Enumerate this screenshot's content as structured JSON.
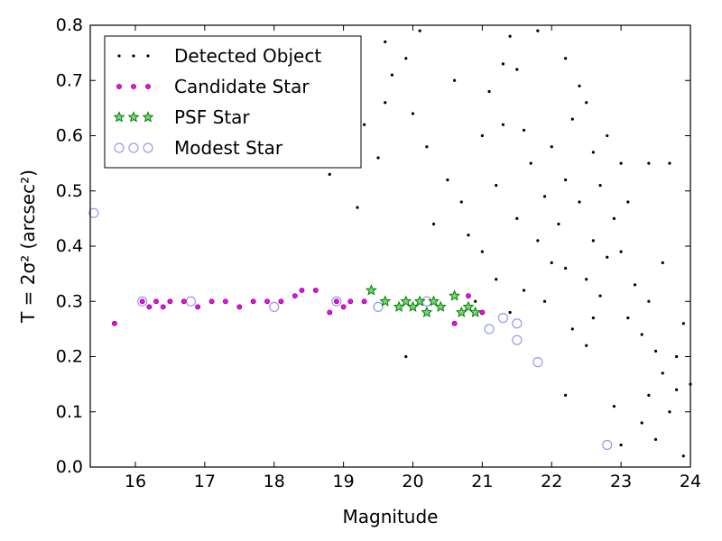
{
  "chart_data": {
    "type": "scatter",
    "xlabel": "Magnitude",
    "ylabel": "T = 2σ² (arcsec²)",
    "xlim": [
      15.35,
      24.0
    ],
    "ylim": [
      0.0,
      0.8
    ],
    "xticks": [
      "16",
      "17",
      "18",
      "19",
      "20",
      "21",
      "22",
      "23",
      "24"
    ],
    "yticks": [
      "0.0",
      "0.1",
      "0.2",
      "0.3",
      "0.4",
      "0.5",
      "0.6",
      "0.7",
      "0.8"
    ],
    "legend_position": "top-left",
    "grid": false,
    "series": [
      {
        "name": "Detected Object",
        "marker": "dot",
        "color": "#000000",
        "points": [
          [
            18.8,
            0.53
          ],
          [
            19.2,
            0.47
          ],
          [
            19.5,
            0.56
          ],
          [
            19.3,
            0.62
          ],
          [
            19.6,
            0.66
          ],
          [
            19.7,
            0.71
          ],
          [
            19.9,
            0.74
          ],
          [
            19.6,
            0.77
          ],
          [
            20.0,
            0.64
          ],
          [
            20.2,
            0.58
          ],
          [
            20.5,
            0.52
          ],
          [
            20.3,
            0.44
          ],
          [
            20.8,
            0.42
          ],
          [
            20.7,
            0.48
          ],
          [
            21.0,
            0.39
          ],
          [
            21.2,
            0.51
          ],
          [
            21.3,
            0.62
          ],
          [
            21.1,
            0.68
          ],
          [
            21.5,
            0.72
          ],
          [
            21.4,
            0.78
          ],
          [
            21.8,
            0.79
          ],
          [
            21.6,
            0.61
          ],
          [
            21.7,
            0.55
          ],
          [
            21.9,
            0.49
          ],
          [
            21.5,
            0.45
          ],
          [
            21.8,
            0.41
          ],
          [
            22.0,
            0.37
          ],
          [
            22.1,
            0.44
          ],
          [
            22.2,
            0.52
          ],
          [
            22.0,
            0.58
          ],
          [
            22.3,
            0.63
          ],
          [
            22.4,
            0.69
          ],
          [
            22.2,
            0.74
          ],
          [
            22.5,
            0.66
          ],
          [
            22.6,
            0.57
          ],
          [
            22.4,
            0.48
          ],
          [
            22.6,
            0.41
          ],
          [
            22.5,
            0.34
          ],
          [
            22.7,
            0.31
          ],
          [
            22.8,
            0.38
          ],
          [
            22.9,
            0.45
          ],
          [
            22.7,
            0.51
          ],
          [
            23.0,
            0.55
          ],
          [
            23.1,
            0.48
          ],
          [
            23.0,
            0.39
          ],
          [
            23.2,
            0.33
          ],
          [
            23.1,
            0.27
          ],
          [
            23.3,
            0.24
          ],
          [
            23.4,
            0.3
          ],
          [
            23.5,
            0.21
          ],
          [
            23.6,
            0.17
          ],
          [
            23.4,
            0.13
          ],
          [
            23.7,
            0.1
          ],
          [
            23.8,
            0.14
          ],
          [
            23.3,
            0.08
          ],
          [
            23.5,
            0.05
          ],
          [
            23.9,
            0.02
          ],
          [
            22.9,
            0.11
          ],
          [
            23.0,
            0.04
          ],
          [
            22.2,
            0.13
          ],
          [
            22.6,
            0.27
          ],
          [
            21.3,
            0.73
          ],
          [
            20.1,
            0.79
          ],
          [
            19.8,
            0.81
          ],
          [
            20.6,
            0.7
          ],
          [
            21.0,
            0.6
          ],
          [
            22.8,
            0.6
          ],
          [
            23.4,
            0.55
          ],
          [
            23.7,
            0.55
          ],
          [
            22.2,
            0.36
          ],
          [
            21.9,
            0.3
          ],
          [
            21.6,
            0.32
          ],
          [
            21.4,
            0.28
          ],
          [
            21.2,
            0.34
          ],
          [
            20.9,
            0.3
          ],
          [
            19.9,
            0.2
          ],
          [
            23.8,
            0.2
          ],
          [
            24.0,
            0.15
          ],
          [
            23.6,
            0.37
          ],
          [
            23.9,
            0.26
          ],
          [
            22.3,
            0.25
          ],
          [
            22.5,
            0.22
          ]
        ]
      },
      {
        "name": "Candidate Star",
        "marker": "circle-small",
        "color": "#ff00ff",
        "points": [
          [
            15.7,
            0.26
          ],
          [
            16.1,
            0.3
          ],
          [
            16.2,
            0.29
          ],
          [
            16.3,
            0.3
          ],
          [
            16.4,
            0.29
          ],
          [
            16.5,
            0.3
          ],
          [
            16.7,
            0.3
          ],
          [
            16.9,
            0.29
          ],
          [
            17.1,
            0.3
          ],
          [
            17.3,
            0.3
          ],
          [
            17.5,
            0.29
          ],
          [
            17.7,
            0.3
          ],
          [
            17.9,
            0.3
          ],
          [
            18.1,
            0.3
          ],
          [
            18.3,
            0.31
          ],
          [
            18.4,
            0.32
          ],
          [
            18.6,
            0.32
          ],
          [
            18.8,
            0.28
          ],
          [
            18.9,
            0.3
          ],
          [
            19.0,
            0.29
          ],
          [
            19.1,
            0.3
          ],
          [
            19.3,
            0.3
          ],
          [
            20.6,
            0.26
          ],
          [
            20.8,
            0.31
          ],
          [
            21.0,
            0.28
          ]
        ]
      },
      {
        "name": "PSF Star",
        "marker": "star",
        "color": "#008000",
        "points": [
          [
            19.4,
            0.32
          ],
          [
            19.6,
            0.3
          ],
          [
            19.8,
            0.29
          ],
          [
            19.9,
            0.3
          ],
          [
            20.0,
            0.29
          ],
          [
            20.1,
            0.3
          ],
          [
            20.2,
            0.28
          ],
          [
            20.3,
            0.3
          ],
          [
            20.4,
            0.29
          ],
          [
            20.6,
            0.31
          ],
          [
            20.7,
            0.28
          ],
          [
            20.8,
            0.29
          ],
          [
            20.9,
            0.28
          ]
        ]
      },
      {
        "name": "Modest Star",
        "marker": "circle-open",
        "color": "#9999ee",
        "points": [
          [
            15.4,
            0.46
          ],
          [
            16.1,
            0.3
          ],
          [
            16.8,
            0.3
          ],
          [
            18.0,
            0.29
          ],
          [
            18.9,
            0.3
          ],
          [
            19.5,
            0.29
          ],
          [
            20.2,
            0.3
          ],
          [
            21.1,
            0.25
          ],
          [
            21.3,
            0.27
          ],
          [
            21.5,
            0.26
          ],
          [
            21.5,
            0.23
          ],
          [
            21.8,
            0.19
          ],
          [
            22.8,
            0.04
          ]
        ]
      }
    ]
  }
}
